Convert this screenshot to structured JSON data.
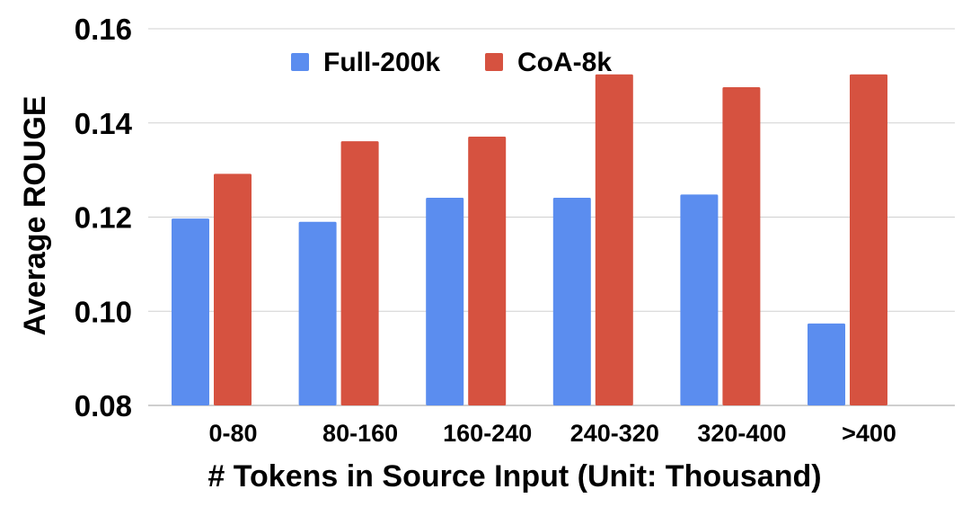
{
  "chart_data": {
    "type": "bar",
    "title": "",
    "xlabel": "# Tokens in Source Input (Unit: Thousand)",
    "ylabel": "Average ROUGE",
    "categories": [
      "0-80",
      "80-160",
      "160-240",
      "240-320",
      "320-400",
      ">400"
    ],
    "series": [
      {
        "name": "Full-200k",
        "color": "#5B8DEF",
        "values": [
          0.1197,
          0.119,
          0.1241,
          0.1241,
          0.1248,
          0.0974
        ]
      },
      {
        "name": "CoA-8k",
        "color": "#D65240",
        "values": [
          0.1292,
          0.1361,
          0.1371,
          0.1503,
          0.1476,
          0.1503
        ]
      }
    ],
    "ylim": [
      0.08,
      0.16
    ],
    "yticks": [
      "0.08",
      "0.10",
      "0.12",
      "0.14",
      "0.16"
    ],
    "grid": true,
    "legend_position": "top-center"
  }
}
